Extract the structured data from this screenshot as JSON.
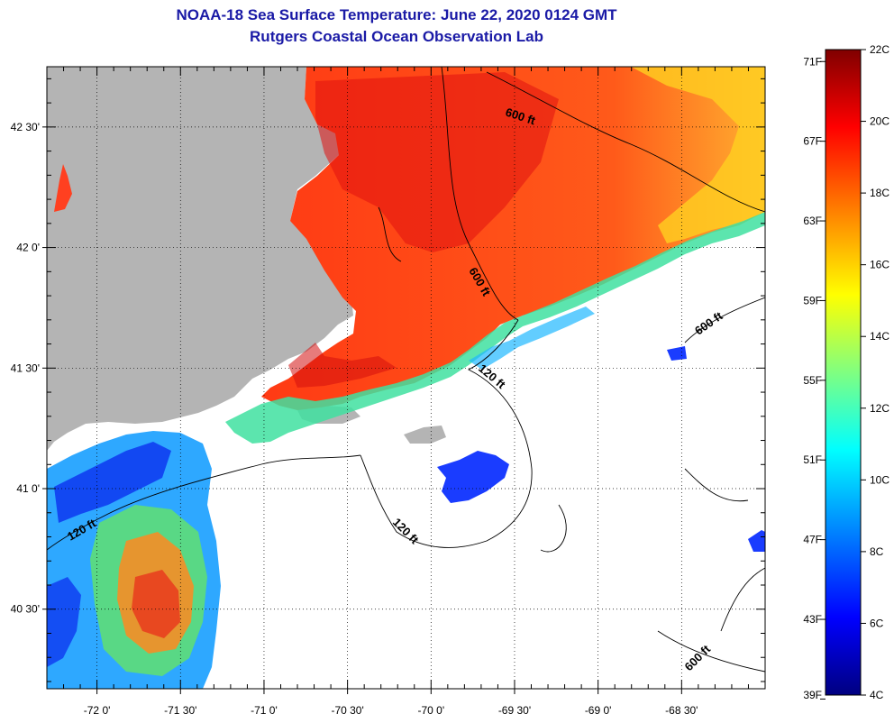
{
  "header": {
    "title": "NOAA-18 Sea Surface Temperature:  June 22, 2020 0124 GMT",
    "subtitle": "Rutgers Coastal Ocean Observation Lab"
  },
  "axes": {
    "longitude_labels": [
      "-72 0'",
      "-71 30'",
      "-71 0'",
      "-70 30'",
      "-70 0'",
      "-69 30'",
      "-69 0'",
      "-68 30'"
    ],
    "latitude_labels": [
      "42 30'",
      "42 0'",
      "41 30'",
      "41 0'",
      "40 30'"
    ],
    "lon_range": [
      -72.3,
      -68.0
    ],
    "lat_range": [
      40.17,
      42.75
    ]
  },
  "contour_labels": [
    "600 ft",
    "600 ft",
    "600 ft",
    "600 ft",
    "120 ft",
    "120 ft",
    "120 ft"
  ],
  "colorbar": {
    "celsius_labels": [
      "22C",
      "20C",
      "18C",
      "16C",
      "14C",
      "12C",
      "10C",
      "8C",
      "6C",
      "4C"
    ],
    "fahrenheit_labels": [
      "71F",
      "67F",
      "63F",
      "59F",
      "55F",
      "51F",
      "47F",
      "43F",
      "39F"
    ],
    "range_c": [
      4,
      22
    ],
    "colors": [
      "#000080",
      "#0000ff",
      "#0080ff",
      "#00ffff",
      "#80ff80",
      "#ffff00",
      "#ff8000",
      "#ff0000",
      "#800000"
    ]
  },
  "colors": {
    "land": "#b4b4b4",
    "title": "#1a1aa6"
  }
}
